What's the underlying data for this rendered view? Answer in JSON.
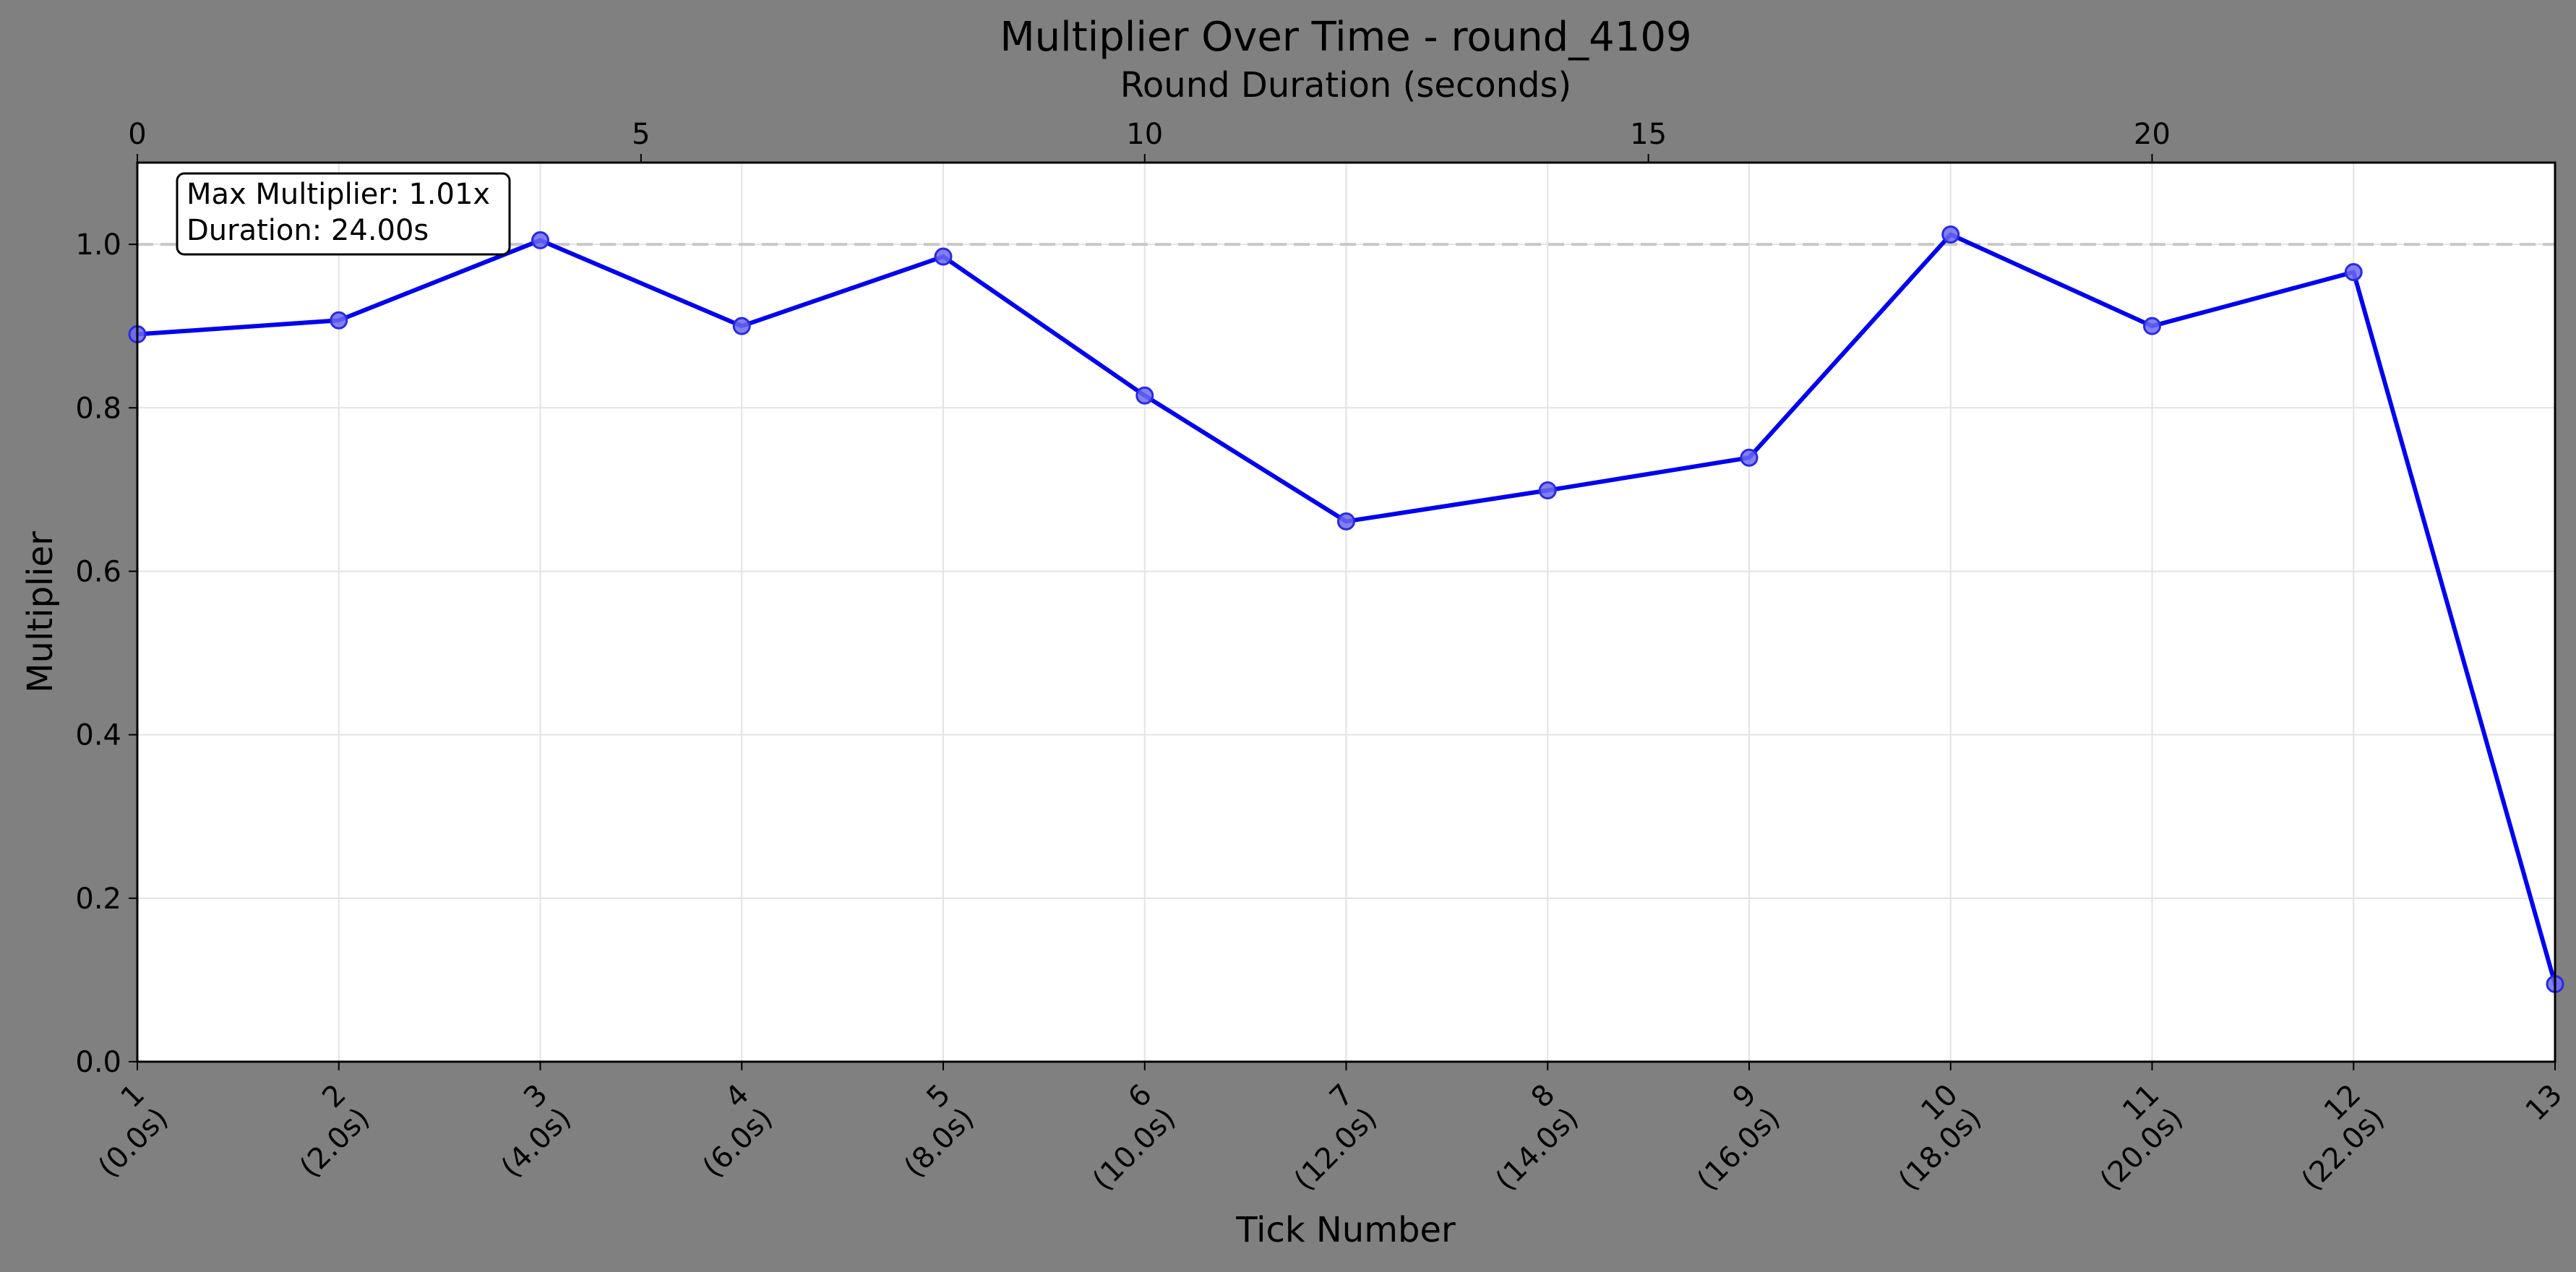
{
  "chart_data": {
    "type": "line",
    "title": "Multiplier Over Time - round_4109",
    "xlabel": "Tick Number",
    "ylabel": "Multiplier",
    "secondary_xlabel": "Round Duration (seconds)",
    "x": [
      1,
      2,
      3,
      4,
      5,
      6,
      7,
      8,
      9,
      10,
      11,
      12,
      13
    ],
    "x_tick_labels": [
      [
        "1",
        "(0.0s)"
      ],
      [
        "2",
        "(2.0s)"
      ],
      [
        "3",
        "(4.0s)"
      ],
      [
        "4",
        "(6.0s)"
      ],
      [
        "5",
        "(8.0s)"
      ],
      [
        "6",
        "(10.0s)"
      ],
      [
        "7",
        "(12.0s)"
      ],
      [
        "8",
        "(14.0s)"
      ],
      [
        "9",
        "(16.0s)"
      ],
      [
        "10",
        "(18.0s)"
      ],
      [
        "11",
        "(20.0s)"
      ],
      [
        "12",
        "(22.0s)"
      ],
      [
        "13",
        ""
      ]
    ],
    "series": [
      {
        "values": [
          0.89,
          0.907,
          1.005,
          0.9,
          0.985,
          0.815,
          0.661,
          0.699,
          0.739,
          1.012,
          0.9,
          0.966,
          0.095
        ],
        "color": "#0000ee"
      }
    ],
    "xlim": [
      1,
      13
    ],
    "ylim": [
      0,
      1.1
    ],
    "yticks": [
      0.0,
      0.2,
      0.4,
      0.6,
      0.8,
      1.0
    ],
    "secondary_xlim": [
      0,
      24
    ],
    "secondary_xticks": [
      0,
      5,
      10,
      15,
      20
    ],
    "reference_line": {
      "y": 1.0,
      "style": "dashed",
      "color": "#c8c8c8"
    },
    "annotation": [
      "Max Multiplier: 1.01x",
      "Duration: 24.00s"
    ],
    "grid": true,
    "background": "#808080",
    "plot_background": "#ffffff"
  }
}
